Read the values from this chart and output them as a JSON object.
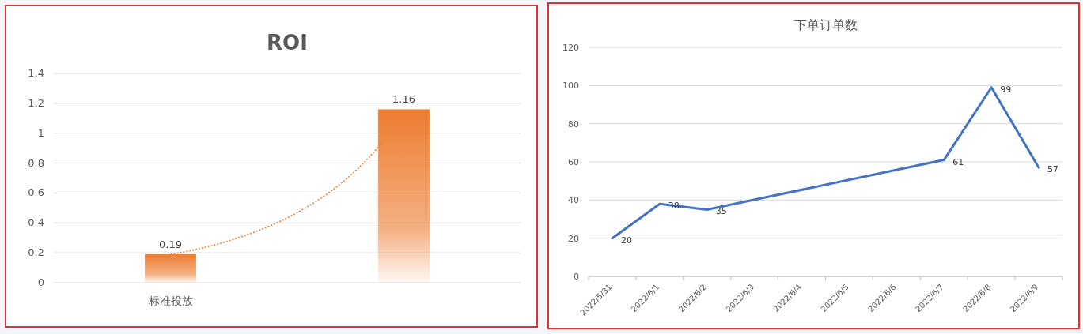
{
  "chart_data": [
    {
      "type": "bar",
      "title": "ROI",
      "categories": [
        "标准投放",
        null
      ],
      "values": [
        0.19,
        1.16
      ],
      "color": "#ed7d31",
      "ylim": [
        0,
        1.4
      ],
      "yticks": [
        0,
        0.2,
        0.4,
        0.6,
        0.8,
        1,
        1.2,
        1.4
      ],
      "grid": "y",
      "data_labels": true
    },
    {
      "type": "line",
      "title": "下单订单数",
      "series": [
        {
          "color": "#4472c4",
          "x": [
            "2022-05-31",
            "2022-06-01",
            "2022-06-02",
            "2022-06-07",
            "2022-06-08",
            "2022-06-09"
          ],
          "values": [
            20,
            38,
            35,
            61,
            99,
            57
          ]
        }
      ],
      "xlim": [
        "2022-05-30T12:00",
        "2022-06-09T12:00"
      ],
      "xticks": [
        {
          "value": "2022-05-31",
          "label": "2022/5/31"
        },
        {
          "value": "2022-06-01",
          "label": "2022/6/1"
        },
        {
          "value": "2022-06-02",
          "label": "2022/6/2"
        },
        {
          "value": "2022-06-03",
          "label": "2022/6/3"
        },
        {
          "value": "2022-06-04",
          "label": "2022/6/4"
        },
        {
          "value": "2022-06-05",
          "label": "2022/6/5"
        },
        {
          "value": "2022-06-06",
          "label": "2022/6/6"
        },
        {
          "value": "2022-06-07",
          "label": "2022/6/7"
        },
        {
          "value": "2022-06-08",
          "label": "2022/6/8"
        },
        {
          "value": "2022-06-09",
          "label": "2022/6/9"
        }
      ],
      "ylim": [
        0,
        120
      ],
      "yticks": [
        0,
        20,
        40,
        60,
        80,
        100,
        120
      ],
      "grid": "y",
      "data_labels": true,
      "marker": "none",
      "line_style": "solid"
    }
  ]
}
